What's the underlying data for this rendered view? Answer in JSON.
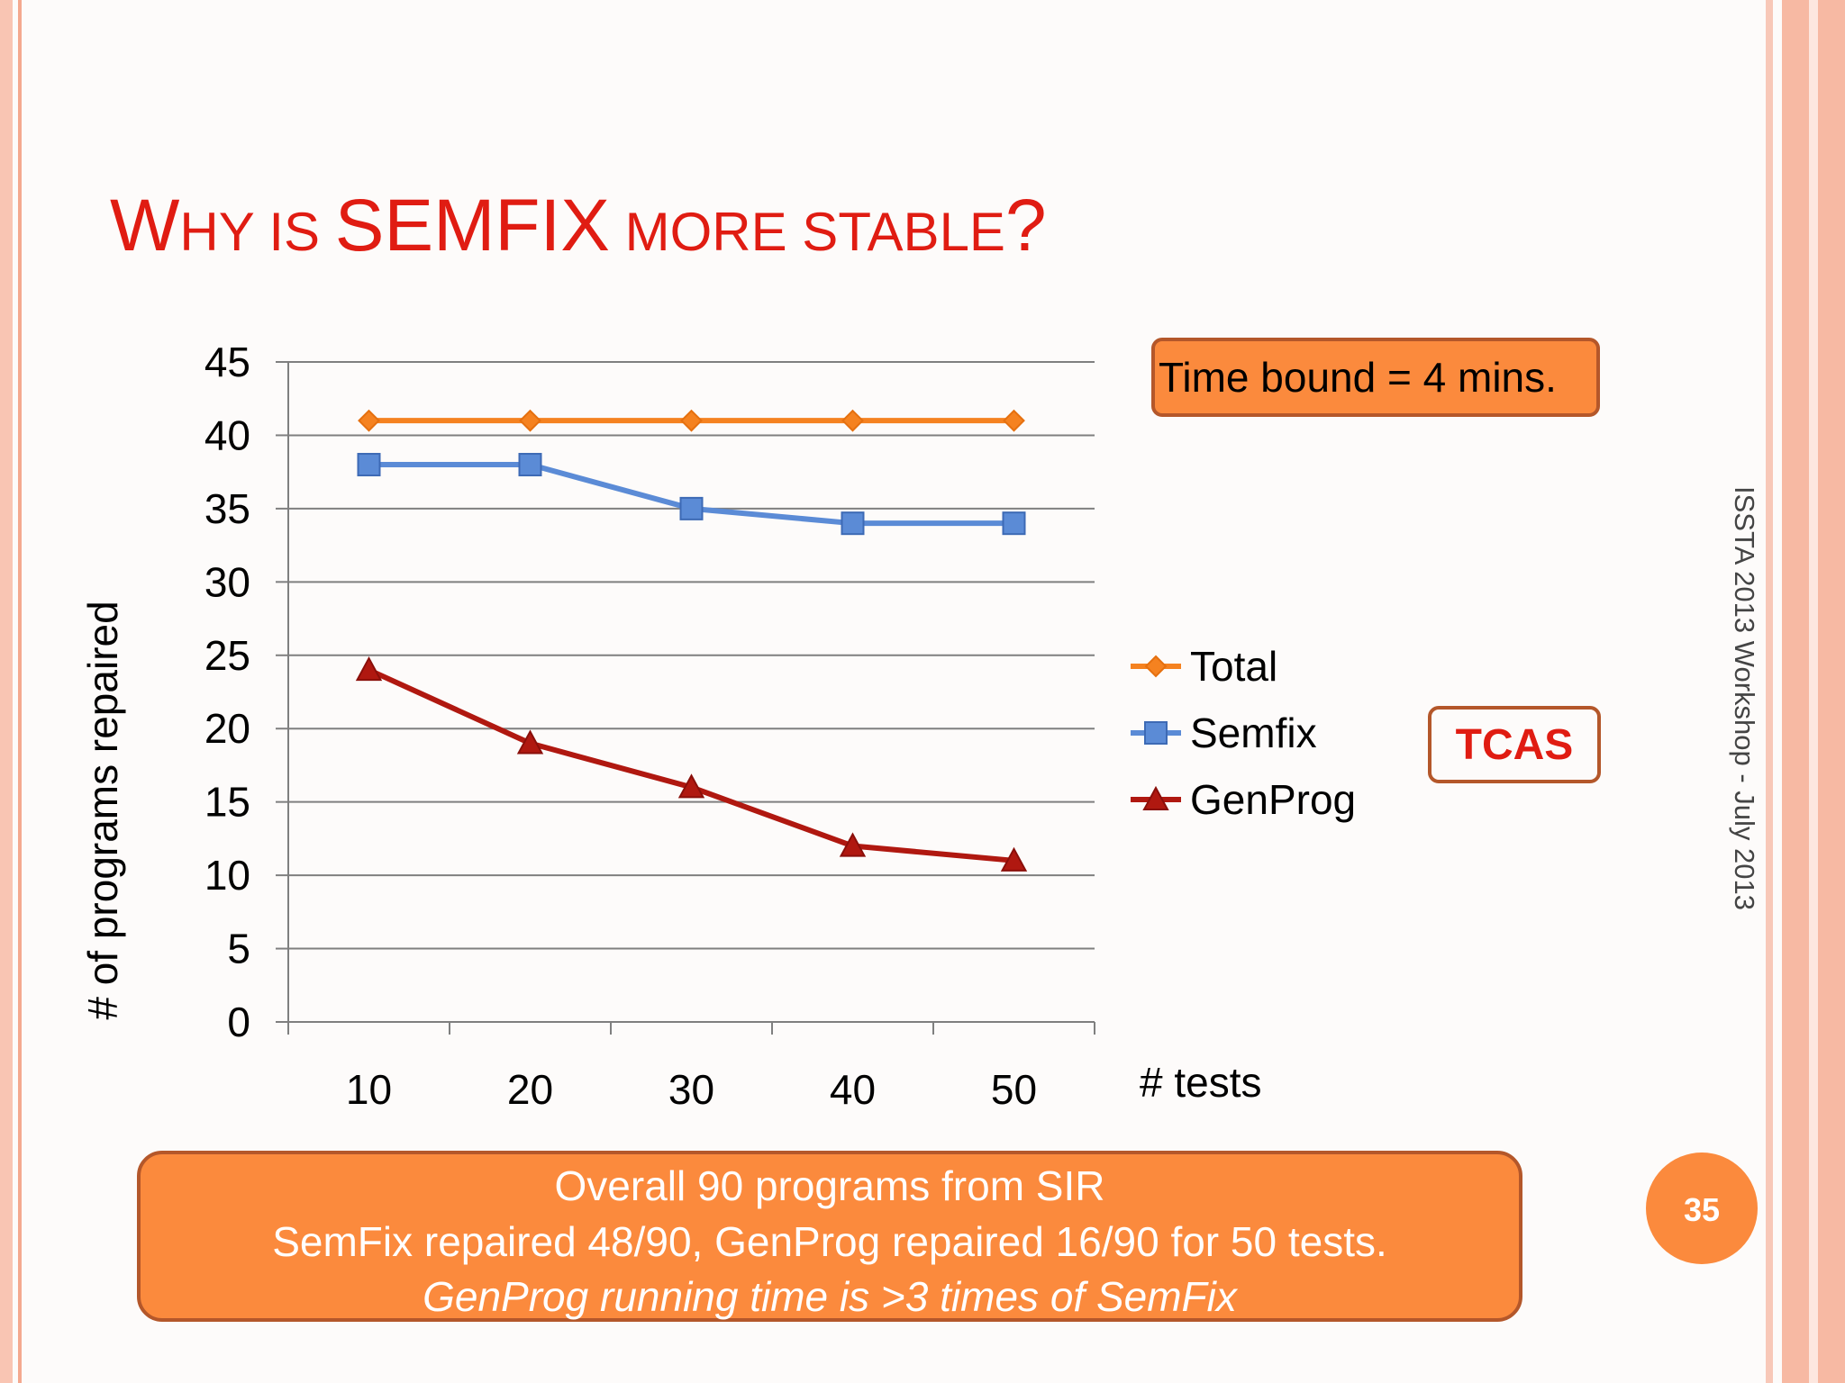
{
  "slide": {
    "title_w": "W",
    "title_hy_is": "HY IS ",
    "title_semfix": "SEMFIX",
    "title_rest": " MORE STABLE",
    "title_q": "?",
    "time_bound_note": "Time bound = 4 mins.",
    "tcas_label": "TCAS",
    "side_footer": "ISSTA 2013 Workshop - July 2013",
    "summary_line1": "Overall   90 programs from SIR",
    "summary_line2": "SemFix repaired  48/90, GenProg repaired 16/90 for 50 tests.",
    "summary_line3": "GenProg running time is >3 times of SemFix",
    "page_number": "35"
  },
  "colors": {
    "title": "#e01c12",
    "accent_box": "#fb8a3d",
    "box_border": "#b4572a",
    "total": "#f58220",
    "semfix": "#5b8bd6",
    "genprog": "#b01810",
    "grid": "#7f7f7f"
  },
  "chart_data": {
    "type": "line",
    "x": [
      10,
      20,
      30,
      40,
      50
    ],
    "xlabel": "# tests",
    "ylabel": "# of programs repaired",
    "ylim": [
      0,
      45
    ],
    "yticks": [
      0,
      5,
      10,
      15,
      20,
      25,
      30,
      35,
      40,
      45
    ],
    "grid": true,
    "legend_position": "right",
    "series": [
      {
        "name": "Total",
        "values": [
          41,
          41,
          41,
          41,
          41
        ],
        "color": "#f58220",
        "marker": "diamond"
      },
      {
        "name": "Semfix",
        "values": [
          38,
          38,
          35,
          34,
          34
        ],
        "color": "#5b8bd6",
        "marker": "square"
      },
      {
        "name": "GenProg",
        "values": [
          24,
          19,
          16,
          12,
          11
        ],
        "color": "#b01810",
        "marker": "triangle"
      }
    ]
  }
}
